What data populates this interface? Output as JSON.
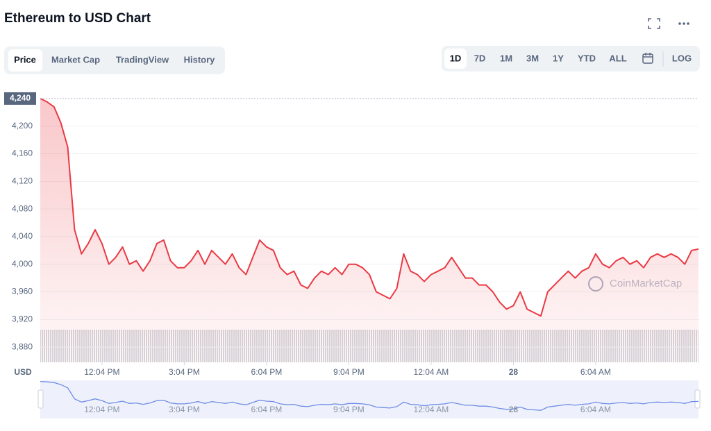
{
  "chart_data": {
    "type": "line",
    "title": "Ethereum to USD Chart",
    "tabs": [
      "Price",
      "Market Cap",
      "TradingView",
      "History"
    ],
    "ranges": [
      "1D",
      "7D",
      "1M",
      "3M",
      "1Y",
      "YTD",
      "ALL"
    ],
    "log_button": "LOG",
    "y_label": "USD",
    "watermark": "CoinMarketCap",
    "color": "#ea3943",
    "price_marker": {
      "value": 4240,
      "label": "4,240"
    },
    "categories": [
      null,
      null,
      null,
      null,
      null,
      null,
      null,
      null,
      null,
      "12:04 PM",
      null,
      null,
      null,
      null,
      null,
      null,
      null,
      null,
      null,
      null,
      null,
      "3:04 PM",
      null,
      null,
      null,
      null,
      null,
      null,
      null,
      null,
      null,
      null,
      null,
      "6:04 PM",
      null,
      null,
      null,
      null,
      null,
      null,
      null,
      null,
      null,
      null,
      null,
      "9:04 PM",
      null,
      null,
      null,
      null,
      null,
      null,
      null,
      null,
      null,
      null,
      null,
      "12:04 AM",
      null,
      null,
      null,
      null,
      null,
      null,
      null,
      null,
      null,
      null,
      null,
      "28",
      null,
      null,
      null,
      null,
      null,
      null,
      null,
      null,
      null,
      null,
      null,
      "6:04 AM",
      null,
      null,
      null,
      null,
      null,
      null,
      null,
      null,
      null,
      null,
      null,
      null,
      null,
      null,
      null
    ],
    "values": [
      4240,
      4235,
      4228,
      4205,
      4170,
      4050,
      4015,
      4030,
      4050,
      4030,
      4000,
      4010,
      4025,
      4000,
      4005,
      3990,
      4005,
      4030,
      4035,
      4005,
      3995,
      3995,
      4005,
      4020,
      4000,
      4020,
      4010,
      4000,
      4015,
      3995,
      3985,
      4010,
      4035,
      4025,
      4020,
      3995,
      3985,
      3990,
      3970,
      3965,
      3980,
      3990,
      3985,
      3995,
      3985,
      4000,
      4000,
      3995,
      3985,
      3960,
      3955,
      3950,
      3965,
      4015,
      3990,
      3985,
      3975,
      3985,
      3990,
      3995,
      4010,
      3995,
      3980,
      3980,
      3970,
      3970,
      3960,
      3945,
      3935,
      3940,
      3960,
      3935,
      3930,
      3925,
      3960,
      3970,
      3980,
      3990,
      3980,
      3990,
      3995,
      4015,
      4000,
      3995,
      4005,
      4010,
      4000,
      4005,
      3995,
      4010,
      4015,
      4010,
      4015,
      4010,
      4000,
      4020,
      4022
    ],
    "ylim": [
      3858,
      4252
    ],
    "yticks": [
      {
        "value": 3880,
        "label": "3,880"
      },
      {
        "value": 3920,
        "label": "3,920"
      },
      {
        "value": 3960,
        "label": "3,960"
      },
      {
        "value": 4000,
        "label": "4,000"
      },
      {
        "value": 4040,
        "label": "4,040"
      },
      {
        "value": 4080,
        "label": "4,080"
      },
      {
        "value": 4120,
        "label": "4,120"
      },
      {
        "value": 4160,
        "label": "4,160"
      },
      {
        "value": 4200,
        "label": "4,200"
      }
    ],
    "grid": true
  }
}
